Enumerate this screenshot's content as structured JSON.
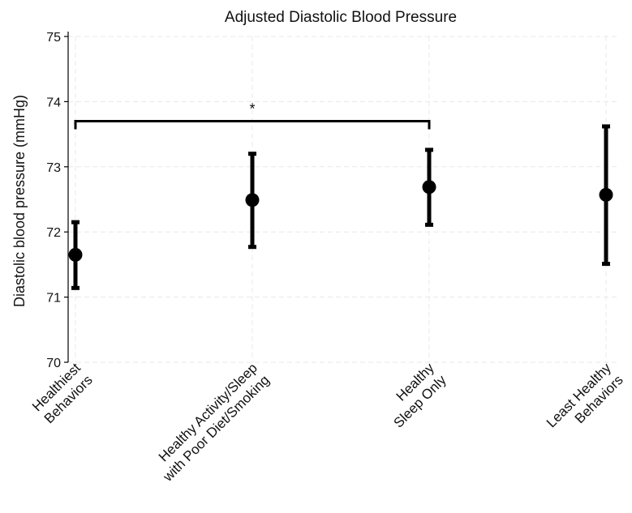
{
  "chart_data": {
    "type": "scatter",
    "title": "Adjusted Diastolic Blood Pressure",
    "xlabel": "",
    "ylabel": "Diastolic blood pressure (mmHg)",
    "ylim": [
      70,
      75
    ],
    "yticks": [
      70,
      71,
      72,
      73,
      74,
      75
    ],
    "grid": true,
    "categories": [
      [
        "Healthiest",
        "Behaviors"
      ],
      [
        "Healthy Activity/Sleep",
        "with Poor Diet/Smoking"
      ],
      [
        "Healthy",
        "Sleep Only"
      ],
      [
        "Least Healthy",
        "Behaviors"
      ]
    ],
    "series": [
      {
        "values": [
          71.65,
          72.49,
          72.69,
          72.57
        ],
        "lower": [
          71.14,
          71.77,
          72.11,
          71.51
        ],
        "upper": [
          72.15,
          73.2,
          73.26,
          73.62
        ]
      }
    ],
    "annotations": [
      {
        "text": "*",
        "from": 0,
        "to": 2,
        "y": 73.7
      }
    ],
    "colors": {
      "marker": "#000000",
      "grid": "#e8e8e8"
    }
  }
}
